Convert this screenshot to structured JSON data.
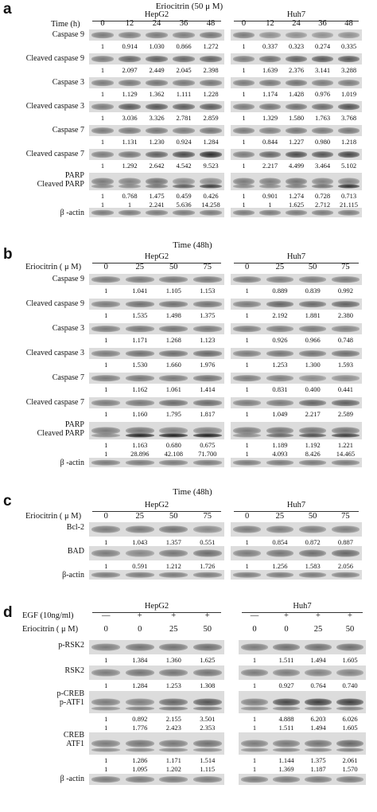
{
  "panels": [
    {
      "label": "a",
      "title": "Eriocitrin (50 μ M)",
      "cond_header": "Time (h)",
      "cell_left": "HepG2",
      "cell_right": "Huh7",
      "cols_left": [
        "0",
        "12",
        "24",
        "36",
        "48"
      ],
      "cols_right": [
        "0",
        "12",
        "24",
        "36",
        "48"
      ],
      "rows": [
        {
          "label": "Caspase 9",
          "left": [
            "1",
            "0.914",
            "1.030",
            "0.866",
            "1.272"
          ],
          "right": [
            "1",
            "0.337",
            "0.323",
            "0.274",
            "0.335"
          ]
        },
        {
          "label": "Cleaved caspase 9",
          "left": [
            "1",
            "2.097",
            "2.449",
            "2.045",
            "2.398"
          ],
          "right": [
            "1",
            "1.639",
            "2.376",
            "3.141",
            "3.288"
          ]
        },
        {
          "label": "Caspase 3",
          "left": [
            "1",
            "1.129",
            "1.362",
            "1.111",
            "1.228"
          ],
          "right": [
            "1",
            "1.174",
            "1.428",
            "0.976",
            "1.019"
          ]
        },
        {
          "label": "Cleaved caspase 3",
          "left": [
            "1",
            "3.036",
            "3.326",
            "2.781",
            "2.859"
          ],
          "right": [
            "1",
            "1.329",
            "1.580",
            "1.763",
            "3.768"
          ]
        },
        {
          "label": "Caspase 7",
          "left": [
            "1",
            "1.131",
            "1.230",
            "0.924",
            "1.284"
          ],
          "right": [
            "1",
            "0.844",
            "1.227",
            "0.980",
            "1.218"
          ]
        },
        {
          "label": "Cleaved caspase 7",
          "left": [
            "1",
            "1.292",
            "2.642",
            "4.542",
            "9.523"
          ],
          "right": [
            "1",
            "2.217",
            "4.499",
            "3.464",
            "5.102"
          ]
        },
        {
          "label": "PARP\nCleaved PARP",
          "left": [
            "1",
            "0.768",
            "1.475",
            "0.459",
            "0.426"
          ],
          "right": [
            "1",
            "0.901",
            "1.274",
            "0.728",
            "0.713"
          ],
          "left2": [
            "1",
            "1",
            "2.241",
            "5.636",
            "14.258"
          ],
          "right2": [
            "1",
            "1",
            "1.625",
            "2.712",
            "21.115"
          ]
        },
        {
          "label": "β -actin",
          "left": [],
          "right": []
        }
      ]
    },
    {
      "label": "b",
      "title": "Time (48h)",
      "cond_header": "Eriocitrin ( μ M)",
      "cell_left": "HepG2",
      "cell_right": "Huh7",
      "cols_left": [
        "0",
        "25",
        "50",
        "75"
      ],
      "cols_right": [
        "0",
        "25",
        "50",
        "75"
      ],
      "rows": [
        {
          "label": "Caspase 9",
          "left": [
            "1",
            "1.041",
            "1.105",
            "1.153"
          ],
          "right": [
            "1",
            "0.889",
            "0.839",
            "0.992"
          ]
        },
        {
          "label": "Cleaved caspase 9",
          "left": [
            "1",
            "1.535",
            "1.498",
            "1.375"
          ],
          "right": [
            "1",
            "2.192",
            "1.881",
            "2.380"
          ]
        },
        {
          "label": "Caspase 3",
          "left": [
            "1",
            "1.171",
            "1.268",
            "1.123"
          ],
          "right": [
            "1",
            "0.926",
            "0.966",
            "0.748"
          ]
        },
        {
          "label": "Cleaved caspase 3",
          "left": [
            "1",
            "1.530",
            "1.660",
            "1.976"
          ],
          "right": [
            "1",
            "1.253",
            "1.300",
            "1.593"
          ]
        },
        {
          "label": "Caspase 7",
          "left": [
            "1",
            "1.162",
            "1.061",
            "1.414"
          ],
          "right": [
            "1",
            "0.831",
            "0.400",
            "0.441"
          ]
        },
        {
          "label": "Cleaved caspase 7",
          "left": [
            "1",
            "1.160",
            "1.795",
            "1.817"
          ],
          "right": [
            "1",
            "1.049",
            "2.217",
            "2.589"
          ]
        },
        {
          "label": "PARP\nCleaved PARP",
          "left": [
            "1",
            "1.163",
            "0.680",
            "0.675"
          ],
          "right": [
            "1",
            "1.189",
            "1.192",
            "1.221"
          ],
          "left2": [
            "1",
            "28.896",
            "42.108",
            "71.700"
          ],
          "right2": [
            "1",
            "4.093",
            "8.426",
            "14.465"
          ]
        },
        {
          "label": "β -actin",
          "left": [],
          "right": []
        }
      ]
    },
    {
      "label": "c",
      "title": "Time (48h)",
      "cond_header": "Eriocitrin ( μ M)",
      "cell_left": "HepG2",
      "cell_right": "Huh7",
      "cols_left": [
        "0",
        "25",
        "50",
        "75"
      ],
      "cols_right": [
        "0",
        "25",
        "50",
        "75"
      ],
      "rows": [
        {
          "label": "Bcl-2",
          "left": [
            "1",
            "1.043",
            "1.357",
            "0.551"
          ],
          "right": [
            "1",
            "0.854",
            "0.872",
            "0.887"
          ]
        },
        {
          "label": "BAD",
          "left": [
            "1",
            "0.591",
            "1.212",
            "1.726"
          ],
          "right": [
            "1",
            "1.256",
            "1.583",
            "2.056"
          ]
        },
        {
          "label": "β-actin",
          "left": [],
          "right": []
        }
      ]
    },
    {
      "label": "d",
      "title": "",
      "cond_header": "EGF (10ng/ml)",
      "cond_header2": "Eriocitrin ( μ M)",
      "cell_left": "HepG2",
      "cell_right": "Huh7",
      "cols_left": [
        "—",
        "+",
        "+",
        "+"
      ],
      "cols_right": [
        "—",
        "+",
        "+",
        "+"
      ],
      "cols2_left": [
        "0",
        "0",
        "25",
        "50"
      ],
      "cols2_right": [
        "0",
        "0",
        "25",
        "50"
      ],
      "rows": [
        {
          "label": "p-RSK2",
          "left": [
            "1",
            "1.384",
            "1.360",
            "1.625"
          ],
          "right": [
            "1",
            "1.511",
            "1.494",
            "1.605"
          ]
        },
        {
          "label": "RSK2",
          "left": [
            "1",
            "1.284",
            "1.253",
            "1.308"
          ],
          "right": [
            "1",
            "0.927",
            "0.764",
            "0.740"
          ]
        },
        {
          "label": "p-CREB\np-ATF1",
          "left": [
            "1",
            "0.892",
            "2.155",
            "3.501"
          ],
          "right": [
            "1",
            "4.888",
            "6.203",
            "6.026"
          ],
          "left2": [
            "1",
            "1.776",
            "2.423",
            "2.353"
          ],
          "right2": [
            "1",
            "1.511",
            "1.494",
            "1.605"
          ]
        },
        {
          "label": "CREB\nATF1",
          "left": [
            "1",
            "1.286",
            "1.171",
            "1.514"
          ],
          "right": [
            "1",
            "1.144",
            "1.375",
            "2.061"
          ],
          "left2": [
            "1",
            "1.095",
            "1.202",
            "1.115"
          ],
          "right2": [
            "1",
            "1.369",
            "1.187",
            "1.570"
          ]
        },
        {
          "label": "β -actin",
          "left": [],
          "right": []
        }
      ]
    }
  ]
}
